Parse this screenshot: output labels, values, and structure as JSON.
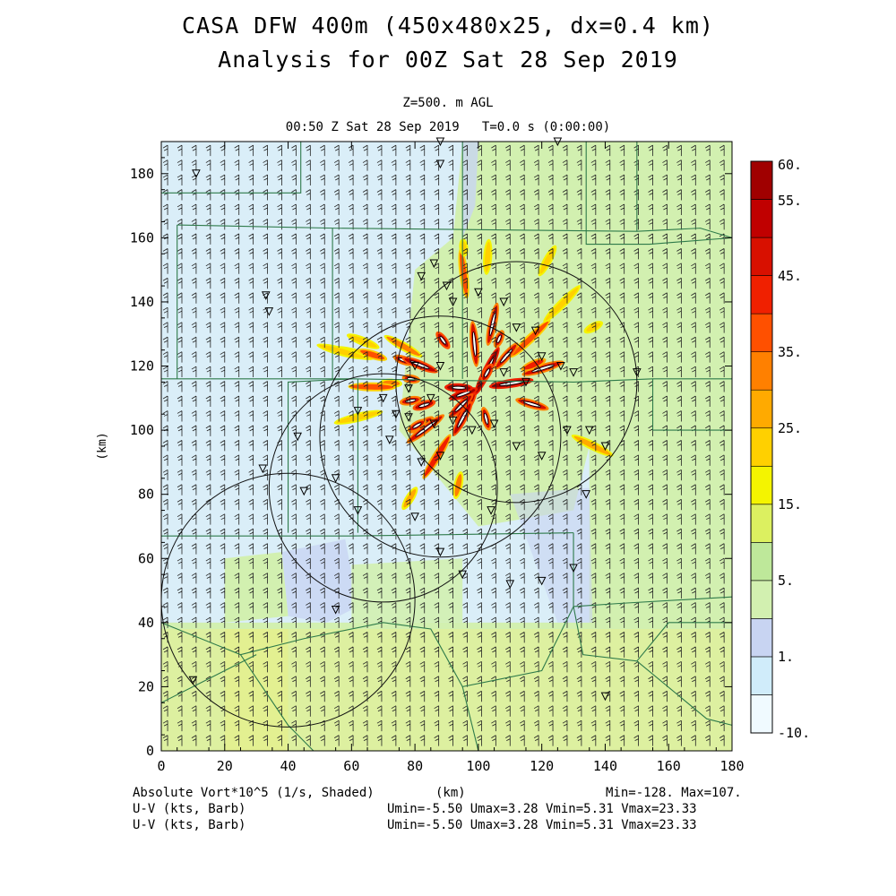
{
  "titles": {
    "line1": "CASA DFW 400m (450x480x25, dx=0.4 km)",
    "line2": "Analysis for 00Z Sat 28 Sep 2019",
    "level": "Z=500. m AGL",
    "time": "00:50 Z Sat 28 Sep 2019   T=0.0 s (0:00:00)"
  },
  "footer": {
    "field1": "Absolute Vort*10^5 (1/s, Shaded)",
    "field2": "U-V (kts, Barb)",
    "field3": "U-V (kts, Barb)",
    "xunit": "(km)",
    "minmax": "Min=-128. Max=107.",
    "stats1": "Umin=-5.50 Umax=3.28 Vmin=5.31 Vmax=23.33",
    "stats2": "Umin=-5.50 Umax=3.28 Vmin=5.31 Vmax=23.33"
  },
  "chart_data": {
    "type": "heatmap",
    "title": "CASA DFW 400m (450x480x25, dx=0.4 km)",
    "subtitle": "Analysis for 00Z Sat 28 Sep 2019",
    "field": "Absolute Vort*10^5 (1/s, Shaded)",
    "overlay": "U-V (kts, Barb)",
    "xlabel": "",
    "ylabel": "(km)",
    "xlim": [
      0,
      180
    ],
    "ylim": [
      0,
      190
    ],
    "xticks": [
      0,
      20,
      40,
      60,
      80,
      100,
      120,
      140,
      160,
      180
    ],
    "yticks": [
      0,
      20,
      40,
      60,
      80,
      100,
      120,
      140,
      160,
      180
    ],
    "colorbar": {
      "labels": [
        "60.",
        "55.",
        "45.",
        "35.",
        "25.",
        "15.",
        "5.",
        "1.",
        "-10."
      ],
      "label_values": [
        60,
        55,
        45,
        35,
        25,
        15,
        5,
        1,
        -10
      ],
      "colors": [
        "#f0faff",
        "#d0ecfa",
        "#c8d4f2",
        "#d2f0b0",
        "#bee89a",
        "#dcf060",
        "#f4f400",
        "#ffd000",
        "#ffaa00",
        "#ff8000",
        "#ff5000",
        "#f02000",
        "#d81000",
        "#c00000",
        "#a00000"
      ]
    },
    "background_field": {
      "north_region": "#d2f0b0",
      "west_region": "#daeef8",
      "south_band": "#ddf0a0",
      "south_band_y_below": 38
    },
    "radar_range_circles_km": [
      {
        "cx": 112,
        "cy": 115,
        "r": 38
      },
      {
        "cx": 88,
        "cy": 98,
        "r": 38
      },
      {
        "cx": 70,
        "cy": 82,
        "r": 36
      },
      {
        "cx": 40,
        "cy": 47,
        "r": 40
      }
    ],
    "vorticity_maxima": {
      "center_km": [
        100,
        113
      ],
      "max": 107,
      "min": -128
    },
    "stats": {
      "Umin": -5.5,
      "Umax": 3.28,
      "Vmin": 5.31,
      "Vmax": 23.33
    }
  }
}
